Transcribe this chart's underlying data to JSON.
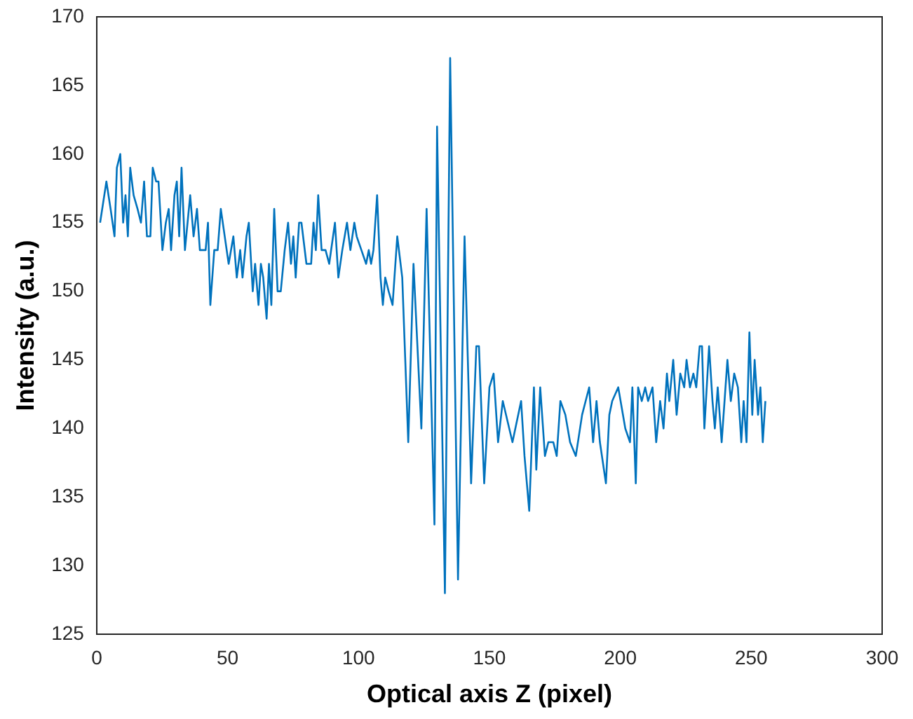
{
  "chart_data": {
    "type": "line",
    "xlabel": "Optical axis Z (pixel)",
    "ylabel": "Intensity (a.u.)",
    "xlim": [
      0,
      300
    ],
    "xticks": [
      0,
      50,
      100,
      150,
      200,
      250,
      300
    ],
    "ylim": [
      125,
      170
    ],
    "yticks": [
      125,
      130,
      135,
      140,
      145,
      150,
      155,
      160,
      165,
      170
    ],
    "grid": false,
    "legend": false,
    "marker": "none",
    "line_style": "solid",
    "series": [
      {
        "color": "#0072bd",
        "x": [
          1.3,
          3.7,
          5.3,
          6.8,
          7.7,
          9,
          10.1,
          11,
          11.9,
          12.8,
          14.1,
          15.6,
          16.9,
          18.1,
          19.2,
          20.5,
          21.4,
          22.7,
          23.6,
          25.1,
          26.4,
          27.5,
          28.4,
          29.7,
          30.6,
          31.5,
          32.4,
          33.7,
          35.7,
          37,
          38.3,
          39.4,
          41.6,
          42.5,
          43.4,
          44.9,
          46.2,
          47.4,
          48.9,
          50.4,
          52.2,
          53.5,
          54.8,
          55.7,
          57.2,
          58.1,
          59.6,
          60.5,
          61.8,
          62.7,
          63.6,
          64.9,
          65.8,
          66.7,
          67.8,
          69.1,
          70.3,
          71.8,
          73.1,
          74.2,
          75.1,
          76,
          77.3,
          78.2,
          80.1,
          81.9,
          82.8,
          83.7,
          84.6,
          85.9,
          87.4,
          88.8,
          91,
          92.3,
          93.8,
          95.6,
          96.9,
          98.4,
          99.3,
          101.1,
          102.9,
          103.9,
          104.8,
          105.7,
          107.1,
          108.4,
          109.3,
          110.2,
          111.5,
          113,
          114.8,
          116.7,
          119,
          121,
          124,
          126,
          129,
          130,
          133,
          135,
          138,
          140.5,
          143,
          145,
          146,
          148,
          150,
          151.6,
          153.3,
          155.1,
          158.8,
          162.1,
          163.4,
          165.2,
          167,
          167.9,
          169.4,
          171.2,
          172.5,
          174.4,
          175.7,
          177.1,
          179,
          180.8,
          183,
          185.4,
          188.1,
          189.6,
          190.9,
          192.2,
          194.5,
          195.8,
          196.9,
          199.2,
          201.9,
          203.7,
          204.6,
          205.9,
          206.8,
          208.2,
          209.5,
          210.6,
          212.3,
          213.7,
          215.2,
          216.5,
          217.8,
          218.7,
          220.2,
          221.5,
          222.9,
          224.4,
          225.3,
          226.6,
          227.9,
          229,
          230.3,
          231.2,
          232.1,
          233.9,
          235.2,
          236.1,
          237.2,
          238.7,
          240.9,
          242.2,
          243.5,
          244.9,
          246.2,
          247.1,
          248.2,
          249.3,
          250.4,
          251.3,
          252.6,
          253.5,
          254.4,
          255.4
        ],
        "values": [
          155,
          158,
          156,
          154,
          159,
          160,
          155,
          157,
          154,
          159,
          157,
          156,
          155,
          158,
          154,
          154,
          159,
          158,
          158,
          153,
          155,
          156,
          153,
          157,
          158,
          154,
          159,
          153,
          157,
          154,
          156,
          153,
          153,
          155,
          149,
          153,
          153,
          156,
          154,
          152,
          154,
          151,
          153,
          151,
          154,
          155,
          150,
          152,
          149,
          152,
          151,
          148,
          152,
          149,
          156,
          150,
          150,
          153,
          155,
          152,
          154,
          151,
          155,
          155,
          152,
          152,
          155,
          153,
          157,
          153,
          153,
          152,
          155,
          151,
          153,
          155,
          153,
          155,
          154,
          153,
          152,
          153,
          152,
          153,
          157,
          151,
          149,
          151,
          150,
          149,
          154,
          151,
          139,
          152,
          140,
          156,
          133,
          162,
          128,
          167,
          129,
          154,
          136,
          146,
          146,
          136,
          143,
          144,
          139,
          142,
          139,
          142,
          138,
          134,
          143,
          137,
          143,
          138,
          139,
          139,
          138,
          142,
          141,
          139,
          138,
          141,
          143,
          139,
          142,
          139,
          136,
          141,
          142,
          143,
          140,
          139,
          143,
          136,
          143,
          142,
          143,
          142,
          143,
          139,
          142,
          140,
          144,
          142,
          145,
          141,
          144,
          143,
          145,
          143,
          144,
          143,
          146,
          146,
          140,
          146,
          142,
          140,
          143,
          139,
          145,
          142,
          144,
          143,
          139,
          142,
          139,
          147,
          141,
          145,
          141,
          143,
          139,
          142
        ]
      }
    ]
  }
}
